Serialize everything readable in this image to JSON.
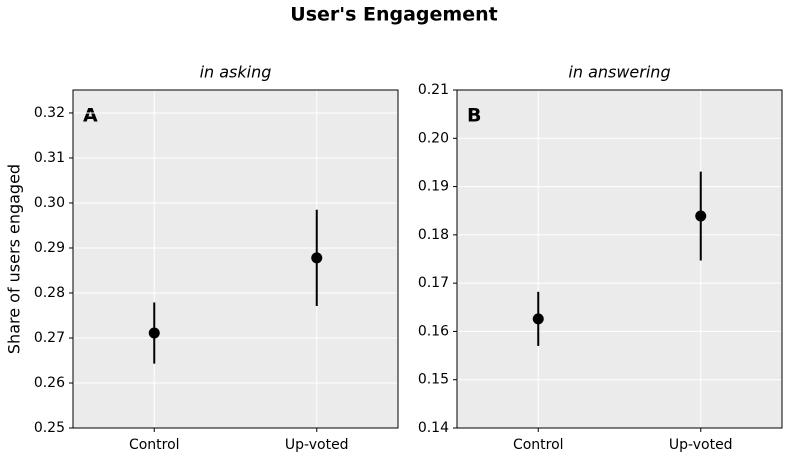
{
  "title": "User's Engagement",
  "chart_data": [
    {
      "type": "errorbar",
      "title": "in asking",
      "ylabel": "Share of users engaged",
      "annotation": "A",
      "categories": [
        "Control",
        "Up-voted"
      ],
      "values": [
        0.2711,
        0.2878
      ],
      "errors": [
        0.0068,
        0.0107
      ],
      "color": "#000000",
      "ylim": [
        0.25,
        0.3251
      ],
      "yticks": [
        0.25,
        0.26,
        0.27,
        0.28,
        0.29,
        {
          "value": 0.3,
          "label": "0.30"
        },
        0.31,
        0.32
      ],
      "grid": true
    },
    {
      "type": "errorbar",
      "title": "in answering",
      "annotation": "B",
      "categories": [
        "Control",
        "Up-voted"
      ],
      "values": [
        0.1626,
        0.1839
      ],
      "errors": [
        0.0056,
        0.0092
      ],
      "color": "#000000",
      "ylim": [
        0.14,
        0.21
      ],
      "yticks": [
        0.14,
        0.15,
        0.16,
        0.17,
        0.18,
        0.19,
        {
          "value": 0.2,
          "label": "0.20"
        },
        0.21
      ],
      "grid": true
    }
  ]
}
